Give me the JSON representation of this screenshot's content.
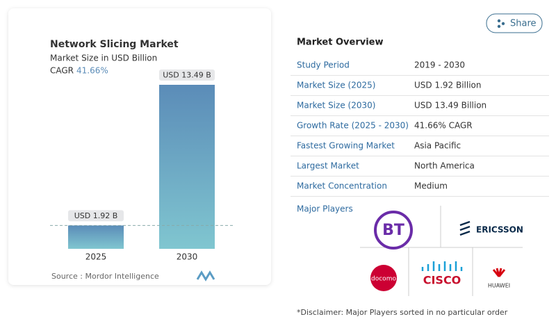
{
  "chart_data": {
    "type": "bar",
    "title": "Network Slicing Market",
    "subtitle": "Market Size in USD Billion",
    "cagr_label": "CAGR",
    "cagr": "41.66%",
    "categories": [
      "2025",
      "2030"
    ],
    "values": [
      1.92,
      13.49
    ],
    "value_labels": [
      "USD 1.92 B",
      "USD 13.49 B"
    ],
    "color": "#6aa3c4",
    "source": "Source :  Mordor Intelligence"
  },
  "share": "Share",
  "overview": {
    "title": "Market Overview",
    "rows": [
      [
        "Study Period",
        "2019 - 2030"
      ],
      [
        "Market Size (2025)",
        "USD 1.92 Billion"
      ],
      [
        "Market Size (2030)",
        "USD 13.49 Billion"
      ],
      [
        "Growth Rate (2025 - 2030)",
        "41.66% CAGR"
      ],
      [
        "Fastest Growing Market",
        "Asia Pacific"
      ],
      [
        "Largest Market",
        "North America"
      ],
      [
        "Market Concentration",
        "Medium"
      ]
    ]
  },
  "major_players": {
    "title": "Major Players",
    "logos": [
      "BT",
      "ERICSSON",
      "docomo",
      "CISCO",
      "HUAWEI"
    ]
  },
  "disclaimer": "*Disclaimer: Major Players sorted in no particular order"
}
